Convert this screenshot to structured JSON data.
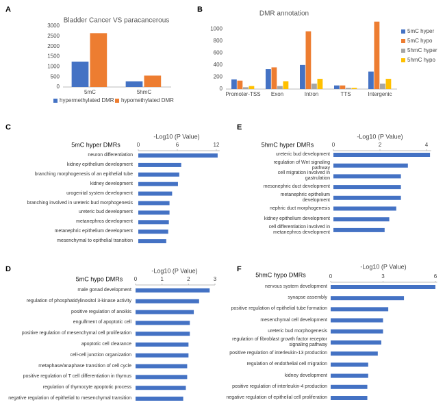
{
  "chart_data": [
    {
      "type": "bar",
      "panel": "A",
      "title": "Bladder Cancer VS paracancerous",
      "categories": [
        "5mC",
        "5hmC"
      ],
      "series": [
        {
          "name": "hypermethylated DMR",
          "color": "#4472c4",
          "values": [
            1250,
            280
          ]
        },
        {
          "name": "hypomethylated DMR",
          "color": "#ed7d31",
          "values": [
            2650,
            560
          ]
        }
      ],
      "ylim": [
        0,
        3000
      ],
      "yticks": [
        0,
        500,
        1000,
        1500,
        2000,
        2500,
        3000
      ],
      "legend": "bottom"
    },
    {
      "type": "bar",
      "panel": "B",
      "title": "DMR annotation",
      "categories": [
        "Promoter-TSS",
        "Exon",
        "Intron",
        "TTS",
        "Intergenic"
      ],
      "series": [
        {
          "name": "5mC hyper",
          "color": "#4472c4",
          "values": [
            160,
            330,
            400,
            60,
            290
          ]
        },
        {
          "name": "5mC hypo",
          "color": "#ed7d31",
          "values": [
            140,
            360,
            960,
            60,
            1120
          ]
        },
        {
          "name": "5hmC hyper",
          "color": "#a5a5a5",
          "values": [
            30,
            50,
            90,
            20,
            90
          ]
        },
        {
          "name": "5hmC hypo",
          "color": "#ffc000",
          "values": [
            50,
            130,
            170,
            20,
            170
          ]
        }
      ],
      "ylim": [
        0,
        1150
      ],
      "yticks": [
        0,
        200,
        400,
        600,
        800,
        1000
      ],
      "legend": "right"
    },
    {
      "type": "hbar",
      "panel": "C",
      "title": "5mC hyper DMRs",
      "xlabel": "-Log10 (P Value)",
      "color": "#4472c4",
      "categories": [
        "neuron differentiation",
        "kidney epithelium development",
        "branching morphogenesis of an epithelial tube",
        "kidney development",
        "urogenital system development",
        "branching involved in ureteric bud morphogenesis",
        "ureteric bud development",
        "metanephros development",
        "metanephric epithelium development",
        "mesenchymal to epithelial transition"
      ],
      "values": [
        12.2,
        6.6,
        6.3,
        6.1,
        5.2,
        4.8,
        4.8,
        4.7,
        4.6,
        4.3
      ],
      "xlim": [
        0,
        12.5
      ],
      "xticks": [
        0,
        6,
        12
      ]
    },
    {
      "type": "hbar",
      "panel": "D",
      "title": "5mC hypo DMRs",
      "xlabel": "-Log10 (P Value)",
      "color": "#4472c4",
      "categories": [
        "male gonad development",
        "regulation of phosphatidylinositol 3-kinase activity",
        "positive regulation of anoikis",
        "engulfment of apoptotic cell",
        "positive regulation of mesenchymal cell proliferation",
        "apoptotic cell clearance",
        "cell-cell junction organization",
        "metaphase/anaphase transition of cell cycle",
        "positive regulation of T cell differentiation in thymus",
        "regulation of thymocyte apoptotic process",
        "negative regulation of epithelial to mesenchymal transition"
      ],
      "values": [
        2.8,
        2.4,
        2.2,
        2.05,
        2.05,
        2.0,
        2.0,
        1.95,
        1.95,
        1.9,
        1.8
      ],
      "xlim": [
        0,
        3
      ],
      "xticks": [
        0,
        1,
        2,
        3
      ]
    },
    {
      "type": "hbar",
      "panel": "E",
      "title": "5hmC hyper DMRs",
      "xlabel": "-Log10 (P Value)",
      "color": "#4472c4",
      "categories": [
        "ureteric bud development",
        "regulation of Wnt signaling pathway",
        "cell migration involved in gastrulation",
        "mesonephric duct development",
        "metanephric epithelium development",
        "nephric duct morphogenesis",
        "kidney epithelium development",
        "cell differentiation involved in metanephros development"
      ],
      "values": [
        4.15,
        3.2,
        2.9,
        2.9,
        2.9,
        2.7,
        2.4,
        2.2
      ],
      "xlim": [
        0,
        4.2
      ],
      "xticks": [
        0,
        2,
        4
      ]
    },
    {
      "type": "hbar",
      "panel": "F",
      "title": "5hmC hypo DMRs",
      "xlabel": "-Log10 (P Value)",
      "color": "#4472c4",
      "categories": [
        "nervous system development",
        "synapse assembly",
        "positive regulation of epithelial tube formation",
        "mesenchymal cell development",
        "ureteric bud morphogenesis",
        "regulation of fibroblast growth factor receptor signaling pathway",
        "positive regulation of interleukin-13 production",
        "regulation of endothelial cell migration",
        "kidney development",
        "positive regulation of interleukin-4 production",
        "negative regulation of epithelial cell proliferation"
      ],
      "values": [
        6.0,
        4.2,
        3.3,
        3.0,
        3.0,
        2.9,
        2.7,
        2.15,
        2.15,
        2.1,
        2.1
      ],
      "xlim": [
        0,
        6.1
      ],
      "xticks": [
        0,
        3,
        6
      ]
    }
  ]
}
